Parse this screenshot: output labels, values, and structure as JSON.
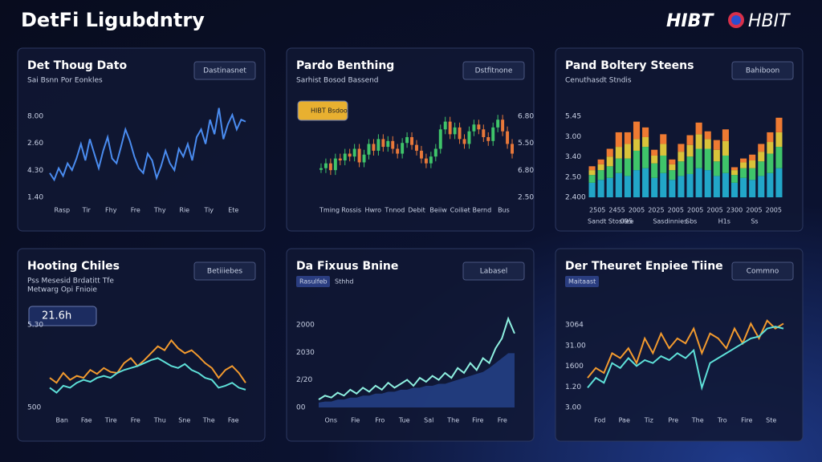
{
  "header": {
    "title": "DetFi Ligubdntry",
    "logo_left": "HIBT",
    "logo_right": "HBIT"
  },
  "panels": [
    {
      "title": "Det Thoug Dato",
      "subtitle": "Sai Bsnn Por Eonkles",
      "button": "Dastinasnet",
      "type": "line",
      "ylim": [
        0,
        100
      ],
      "y_labels": [
        "8.00",
        "2.60",
        "4.30",
        "1.40"
      ],
      "x_labels": [
        "Rasp",
        "Tir",
        "Fhy",
        "Fre",
        "Thy",
        "Rie",
        "Tiy",
        "Ete"
      ],
      "series": [
        {
          "color": "#4a8cf0",
          "values": [
            25,
            18,
            30,
            22,
            35,
            28,
            40,
            55,
            38,
            60,
            45,
            30,
            48,
            62,
            40,
            35,
            52,
            70,
            58,
            42,
            30,
            25,
            45,
            38,
            20,
            32,
            48,
            35,
            28,
            50,
            42,
            55,
            38,
            62,
            70,
            55,
            80,
            65,
            92,
            60,
            75,
            85,
            70,
            80,
            78
          ]
        }
      ]
    },
    {
      "title": "Pardo Benthing",
      "subtitle": "Sarhist Bosod Bassend",
      "button": "Dstfitnone",
      "badge": "HIBT Bsdoo",
      "type": "candle",
      "ylim": [
        0,
        100
      ],
      "y_labels": [
        "6.80",
        "5.50",
        "6.80",
        "2.50"
      ],
      "x_labels": [
        "Tming",
        "Rossis",
        "Hwro",
        "Tnnod",
        "Debit",
        "Beiiw",
        "Coiliet",
        "Bernd",
        "Bus"
      ],
      "up_color": "#3fc46a",
      "down_color": "#e8783a",
      "values": [
        30,
        35,
        28,
        40,
        38,
        45,
        42,
        50,
        36,
        44,
        55,
        48,
        60,
        52,
        58,
        50,
        45,
        56,
        62,
        54,
        48,
        40,
        35,
        42,
        50,
        70,
        78,
        65,
        72,
        60,
        55,
        68,
        75,
        70,
        62,
        58,
        72,
        80,
        68,
        55,
        45
      ]
    },
    {
      "title": "Pand Boltery Steens",
      "subtitle": "Cenuthasdt Stndis",
      "button": "Bahiboon",
      "type": "stacked_bar",
      "ylim": [
        0,
        100
      ],
      "y_labels": [
        "5.45",
        "3.00",
        "3.40",
        "2.50",
        "2.400"
      ],
      "x_labels": [
        "2505",
        "2455",
        "2005",
        "2025",
        "2005",
        "2005",
        "2005",
        "2300",
        "2005",
        "2005"
      ],
      "legend": [
        "Sandt Stosllee",
        "095",
        "Sasdinnies",
        "Sbs",
        "H1s",
        "Ss"
      ],
      "series": [
        {
          "color": "#22a6c8",
          "values": [
            15,
            18,
            20,
            25,
            22,
            28,
            30,
            20,
            25,
            18,
            22,
            24,
            30,
            28,
            22,
            25,
            15,
            20,
            18,
            22,
            25,
            30
          ]
        },
        {
          "color": "#3fc46a",
          "values": [
            8,
            10,
            12,
            15,
            18,
            20,
            22,
            15,
            18,
            10,
            15,
            18,
            20,
            22,
            15,
            18,
            8,
            10,
            12,
            15,
            20,
            22
          ]
        },
        {
          "color": "#d9c33a",
          "values": [
            5,
            6,
            10,
            12,
            15,
            12,
            10,
            8,
            12,
            6,
            10,
            12,
            15,
            10,
            12,
            15,
            5,
            6,
            8,
            10,
            12,
            15
          ]
        },
        {
          "color": "#ee7a32",
          "values": [
            4,
            5,
            8,
            15,
            12,
            18,
            10,
            6,
            10,
            5,
            8,
            10,
            12,
            8,
            10,
            12,
            3,
            4,
            6,
            8,
            10,
            15
          ]
        }
      ]
    },
    {
      "title": "Hooting Chiles",
      "subtitle": "Pss Mesesid Brdatitt Tfe",
      "subtitle2": "Metwarg Opi Fnioie",
      "button": "Betiiiebes",
      "badge": "21.6h",
      "type": "line",
      "ylim": [
        0,
        100
      ],
      "y_labels": [
        "5.30",
        "500"
      ],
      "x_labels": [
        "Ban",
        "Fae",
        "Tire",
        "Fre",
        "Thu",
        "Sne",
        "The",
        "Fae"
      ],
      "series": [
        {
          "color": "#f29a2e",
          "values": [
            30,
            25,
            35,
            28,
            32,
            30,
            38,
            34,
            40,
            36,
            35,
            45,
            50,
            42,
            48,
            55,
            62,
            58,
            68,
            60,
            55,
            58,
            52,
            45,
            40,
            30,
            38,
            42,
            35,
            25
          ]
        },
        {
          "color": "#5ee0d8",
          "values": [
            20,
            15,
            22,
            20,
            25,
            28,
            26,
            30,
            32,
            30,
            35,
            38,
            40,
            42,
            45,
            48,
            50,
            46,
            42,
            40,
            44,
            38,
            35,
            30,
            28,
            20,
            22,
            25,
            20,
            18
          ]
        }
      ]
    },
    {
      "title": "Da Fixuus Bnine",
      "tag": "Rasulfeb",
      "tag2": "Sthhd",
      "button": "Labasel",
      "type": "line",
      "ylim": [
        0,
        100
      ],
      "y_labels": [
        "2000",
        "2030",
        "2/20",
        "00"
      ],
      "x_labels": [
        "Ons",
        "Fie",
        "Fro",
        "Tue",
        "Sal",
        "The",
        "Fire",
        "Fre"
      ],
      "area": {
        "color": "#2a4a9a",
        "values": [
          5,
          6,
          6,
          8,
          8,
          10,
          10,
          12,
          12,
          14,
          14,
          16,
          16,
          18,
          18,
          20,
          20,
          22,
          22,
          24,
          24,
          26,
          28,
          30,
          32,
          34,
          36,
          40,
          45,
          50,
          55,
          55
        ]
      },
      "series": [
        {
          "color": "#8ef0e0",
          "values": [
            8,
            12,
            10,
            15,
            12,
            18,
            14,
            20,
            16,
            22,
            18,
            25,
            20,
            24,
            28,
            22,
            30,
            26,
            32,
            28,
            35,
            30,
            40,
            35,
            45,
            38,
            50,
            45,
            60,
            70,
            90,
            75
          ]
        }
      ]
    },
    {
      "title": "Der Theuret Enpiee Tiine",
      "tag": "Maitaast",
      "button": "Commno",
      "type": "line",
      "ylim": [
        0,
        100
      ],
      "y_labels": [
        "3064",
        "31.00",
        "1600",
        "1.20",
        "3.00"
      ],
      "x_labels": [
        "Fod",
        "Pae",
        "Tiz",
        "Pre",
        "The",
        "Tro",
        "Fire",
        "Ste"
      ],
      "series": [
        {
          "color": "#f29a2e",
          "values": [
            30,
            40,
            35,
            55,
            50,
            60,
            45,
            70,
            55,
            75,
            60,
            70,
            65,
            80,
            55,
            75,
            70,
            60,
            80,
            65,
            85,
            70,
            88,
            80,
            85
          ]
        },
        {
          "color": "#5ee0d8",
          "values": [
            20,
            30,
            25,
            45,
            40,
            50,
            42,
            48,
            45,
            52,
            48,
            55,
            50,
            58,
            20,
            45,
            50,
            55,
            60,
            65,
            70,
            72,
            80,
            82,
            80
          ]
        }
      ]
    }
  ]
}
